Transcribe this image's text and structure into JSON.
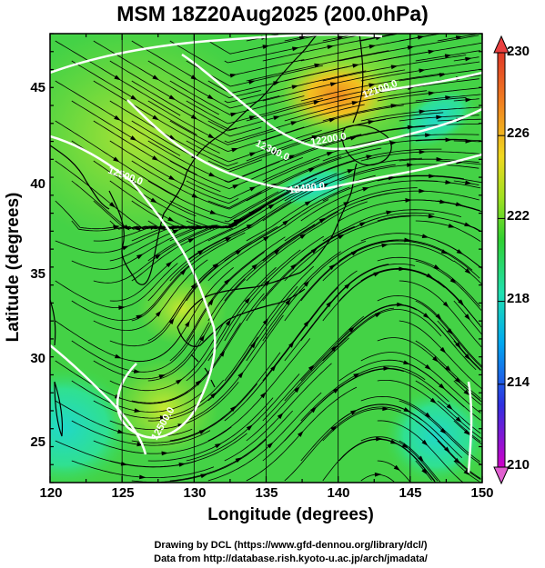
{
  "title": "MSM 18Z20Aug2025 (200.0hPa)",
  "x_axis": {
    "label": "Longitude (degrees)",
    "ticks": [
      "120",
      "125",
      "130",
      "135",
      "140",
      "145",
      "150"
    ]
  },
  "y_axis": {
    "label": "Latitude  (degrees)",
    "ticks": [
      "25",
      "30",
      "35",
      "40",
      "45"
    ]
  },
  "colorbar": {
    "ticks": [
      "230",
      "226",
      "222",
      "218",
      "214",
      "210"
    ],
    "colors": [
      "#c000c0",
      "#2020e0",
      "#00b0f0",
      "#20e0a0",
      "#30d030",
      "#a0e020",
      "#f0d020",
      "#f08020",
      "#e04030"
    ]
  },
  "contour_labels": [
    "12500.0",
    "12500.0",
    "12400.0",
    "12300.0",
    "12200.0",
    "12100.0"
  ],
  "credits": {
    "line1": "Drawing by DCL (https://www.gfd-dennou.org/library/dcl/)",
    "line2": "Data from http://database.rish.kyoto-u.ac.jp/arch/jmadata/"
  },
  "chart_data": {
    "type": "heatmap",
    "title": "MSM 18Z20Aug2025 (200.0hPa)",
    "xlabel": "Longitude (degrees)",
    "ylabel": "Latitude  (degrees)",
    "xlim": [
      120,
      150
    ],
    "ylim": [
      22.5,
      47.5
    ],
    "colorbar_range": [
      210,
      230
    ],
    "colorbar_ticks": [
      210,
      214,
      218,
      222,
      226,
      230
    ],
    "contours": [
      {
        "label": "12500.0"
      },
      {
        "label": "12400.0"
      },
      {
        "label": "12300.0"
      },
      {
        "label": "12200.0"
      },
      {
        "label": "12100.0"
      }
    ],
    "overlay": "streamlines",
    "grid": true
  }
}
